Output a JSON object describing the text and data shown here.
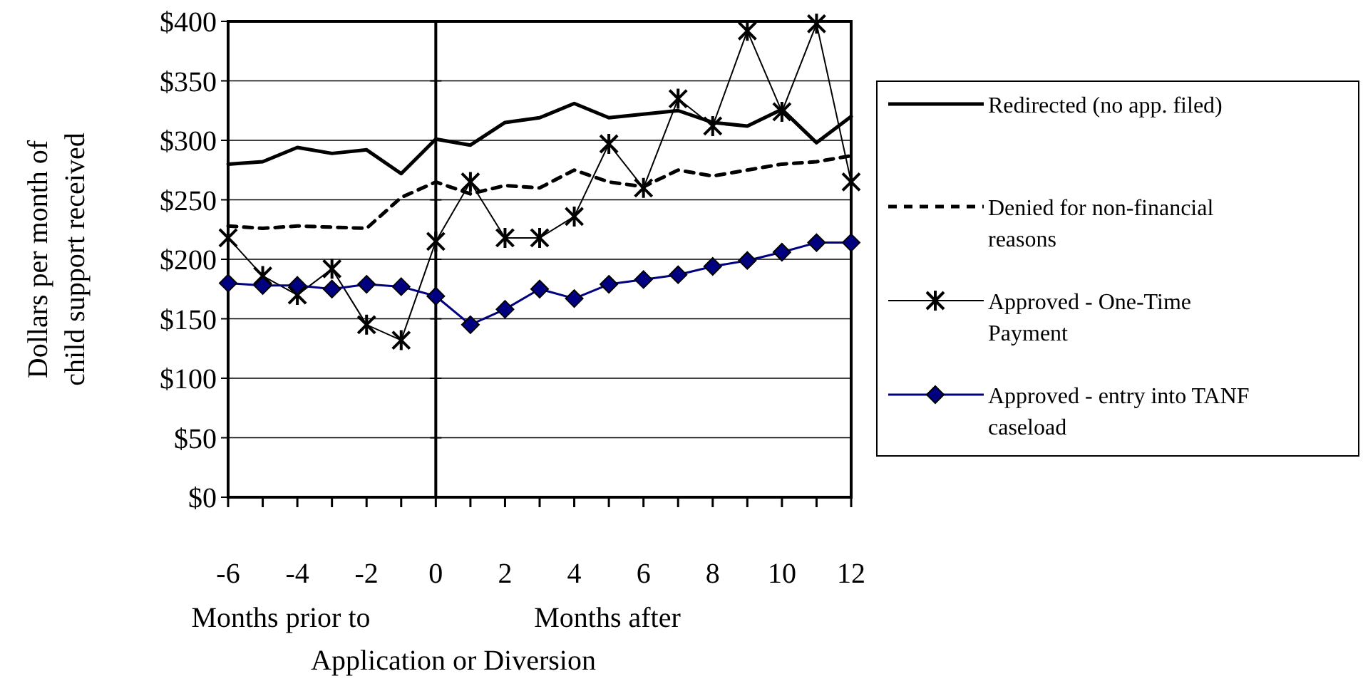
{
  "chart_data": {
    "type": "line",
    "x": [
      -6,
      -5,
      -4,
      -3,
      -2,
      -1,
      0,
      1,
      2,
      3,
      4,
      5,
      6,
      7,
      8,
      9,
      10,
      11,
      12
    ],
    "ylabel": "Dollars per month of child support received",
    "xlabel": "Application or Diversion",
    "annotations": [
      "Months prior to",
      "Months after"
    ],
    "series": [
      {
        "name": "Redirected (no app. filed)",
        "color": "#000000",
        "line_style": "solid",
        "marker": "none",
        "values": [
          280,
          282,
          294,
          289,
          292,
          272,
          301,
          296,
          315,
          319,
          331,
          319,
          322,
          325,
          315,
          312,
          326,
          298,
          320
        ]
      },
      {
        "name": "Denied for non-financial reasons",
        "color": "#000000",
        "line_style": "dashed",
        "marker": "none",
        "values": [
          228,
          226,
          228,
          227,
          226,
          252,
          265,
          255,
          262,
          260,
          275,
          265,
          261,
          275,
          270,
          275,
          280,
          282,
          287
        ]
      },
      {
        "name": "Approved - One-Time Payment",
        "color": "#000000",
        "line_style": "solid",
        "marker": "cross",
        "values": [
          218,
          186,
          170,
          192,
          145,
          132,
          215,
          265,
          218,
          218,
          236,
          297,
          260,
          335,
          312,
          392,
          324,
          398,
          265
        ]
      },
      {
        "name": "Approved - entry into TANF caseload",
        "color": "#000080",
        "line_style": "solid",
        "marker": "diamond",
        "values": [
          180,
          178,
          178,
          175,
          179,
          177,
          169,
          145,
          158,
          175,
          167,
          179,
          183,
          187,
          194,
          199,
          206,
          214,
          214
        ]
      }
    ],
    "xlim": [
      -6,
      12
    ],
    "xticks": [
      -6,
      {
        "value": -5,
        "label": null
      },
      -4,
      {
        "value": -3,
        "label": null
      },
      -2,
      {
        "value": -1,
        "label": null
      },
      0,
      {
        "value": 1,
        "label": null
      },
      2,
      {
        "value": 3,
        "label": null
      },
      4,
      {
        "value": 5,
        "label": null
      },
      6,
      {
        "value": 7,
        "label": null
      },
      8,
      {
        "value": 9,
        "label": null
      },
      10,
      {
        "value": 11,
        "label": null
      },
      12
    ],
    "ylim": [
      0,
      400
    ],
    "yticks": [
      {
        "value": 0,
        "label": "$0"
      },
      {
        "value": 50,
        "label": "$50"
      },
      {
        "value": 100,
        "label": "$100"
      },
      {
        "value": 150,
        "label": "$150"
      },
      {
        "value": 200,
        "label": "$200"
      },
      {
        "value": 250,
        "label": "$250"
      },
      {
        "value": 300,
        "label": "$300"
      },
      {
        "value": 350,
        "label": "$350"
      },
      {
        "value": 400,
        "label": "$400"
      }
    ],
    "ref_lines": [
      {
        "axis": "x",
        "value": 0,
        "label": null,
        "color": "#000000"
      }
    ],
    "grid": "y",
    "legend": "right"
  }
}
